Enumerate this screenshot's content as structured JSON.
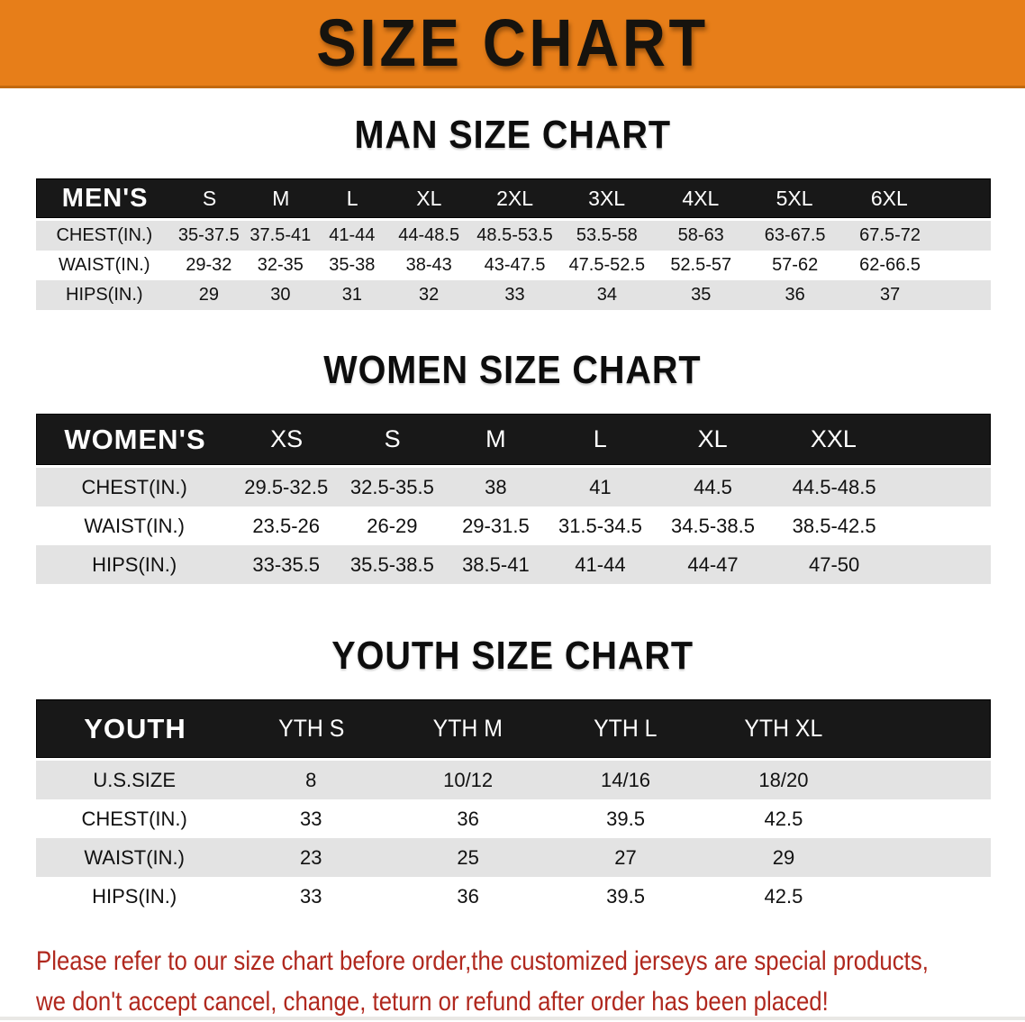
{
  "banner": {
    "title": "SIZE CHART"
  },
  "colors": {
    "banner_orange": "#E77E19",
    "table_header_black": "#181818",
    "row_gray": "#E3E3E3",
    "footer_red": "#B0281E"
  },
  "men": {
    "heading": "MAN SIZE CHART",
    "label": "MEN'S",
    "columns": [
      "S",
      "M",
      "L",
      "XL",
      "2XL",
      "3XL",
      "4XL",
      "5XL",
      "6XL"
    ],
    "rows": [
      {
        "label": "CHEST(IN.)",
        "values": [
          "35-37.5",
          "37.5-41",
          "41-44",
          "44-48.5",
          "48.5-53.5",
          "53.5-58",
          "58-63",
          "63-67.5",
          "67.5-72"
        ]
      },
      {
        "label": "WAIST(IN.)",
        "values": [
          "29-32",
          "32-35",
          "35-38",
          "38-43",
          "43-47.5",
          "47.5-52.5",
          "52.5-57",
          "57-62",
          "62-66.5"
        ]
      },
      {
        "label": "HIPS(IN.)",
        "values": [
          "29",
          "30",
          "31",
          "32",
          "33",
          "34",
          "35",
          "36",
          "37"
        ]
      }
    ]
  },
  "women": {
    "heading": "WOMEN SIZE CHART",
    "label": "WOMEN'S",
    "columns": [
      "XS",
      "S",
      "M",
      "L",
      "XL",
      "XXL"
    ],
    "rows": [
      {
        "label": "CHEST(IN.)",
        "values": [
          "29.5-32.5",
          "32.5-35.5",
          "38",
          "41",
          "44.5",
          "44.5-48.5"
        ]
      },
      {
        "label": "WAIST(IN.)",
        "values": [
          "23.5-26",
          "26-29",
          "29-31.5",
          "31.5-34.5",
          "34.5-38.5",
          "38.5-42.5"
        ]
      },
      {
        "label": "HIPS(IN.)",
        "values": [
          "33-35.5",
          "35.5-38.5",
          "38.5-41",
          "41-44",
          "44-47",
          "47-50"
        ]
      }
    ]
  },
  "youth": {
    "heading": "YOUTH SIZE CHART",
    "label": "YOUTH",
    "columns": [
      "YTH S",
      "YTH M",
      "YTH L",
      "YTH XL"
    ],
    "rows": [
      {
        "label": "U.S.SIZE",
        "values": [
          "8",
          "10/12",
          "14/16",
          "18/20"
        ]
      },
      {
        "label": "CHEST(IN.)",
        "values": [
          "33",
          "36",
          "39.5",
          "42.5"
        ]
      },
      {
        "label": "WAIST(IN.)",
        "values": [
          "23",
          "25",
          "27",
          "29"
        ]
      },
      {
        "label": "HIPS(IN.)",
        "values": [
          "33",
          "36",
          "39.5",
          "42.5"
        ]
      }
    ]
  },
  "footer": {
    "line1": "Please refer to our size chart before order,the customized jerseys are special products,",
    "line2": "we don't accept cancel, change, teturn or refund after order has been placed!"
  }
}
